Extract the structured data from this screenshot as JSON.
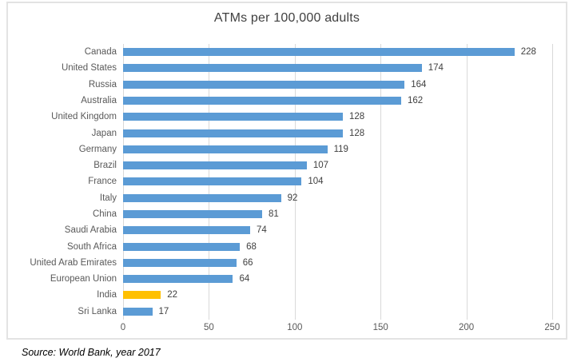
{
  "chart_data": {
    "type": "bar",
    "orientation": "horizontal",
    "title": "ATMs per 100,000 adults",
    "categories": [
      "Canada",
      "United States",
      "Russia",
      "Australia",
      "United Kingdom",
      "Japan",
      "Germany",
      "Brazil",
      "France",
      "Italy",
      "China",
      "Saudi Arabia",
      "South Africa",
      "United Arab Emirates",
      "European Union",
      "India",
      "Sri Lanka"
    ],
    "values": [
      228,
      174,
      164,
      162,
      128,
      128,
      119,
      107,
      104,
      92,
      81,
      74,
      68,
      66,
      64,
      22,
      17
    ],
    "xlabel": "",
    "ylabel": "",
    "xlim": [
      0,
      250
    ],
    "xticks": [
      0,
      50,
      100,
      150,
      200,
      250
    ],
    "grid": "vertical",
    "legend": "none",
    "value_labels": true,
    "bar_color": "#5b9bd5",
    "highlight": {
      "category": "India",
      "color": "#ffc000"
    },
    "gridline_color": "#d9d9d9"
  },
  "source_note": "Source: World Bank, year 2017"
}
